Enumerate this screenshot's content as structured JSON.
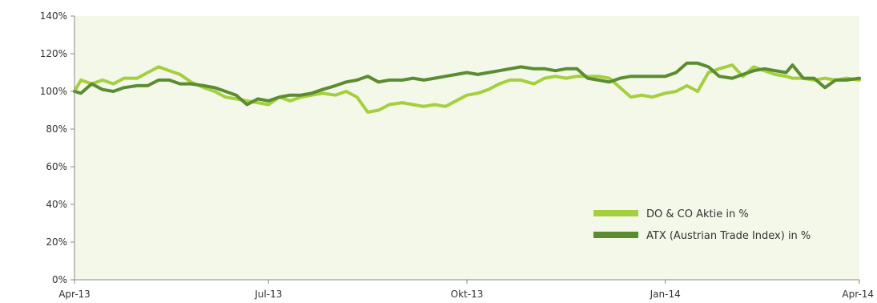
{
  "chart_data": {
    "type": "line",
    "title": "",
    "xlabel": "",
    "ylabel": "",
    "ylim": [
      0,
      140
    ],
    "xlim": [
      "2013-04-02",
      "2014-04-01"
    ],
    "grid": false,
    "legend_position": "bottom-right",
    "y_ticks": [
      "0%",
      "20%",
      "40%",
      "60%",
      "80%",
      "100%",
      "120%",
      "140%"
    ],
    "y_tick_values": [
      0,
      20,
      40,
      60,
      80,
      100,
      120,
      140
    ],
    "x_ticks": [
      "Apr-13",
      "Jul-13",
      "Okt-13",
      "Jan-14",
      "Apr-14"
    ],
    "x_tick_dates": [
      "2013-04-02",
      "2013-07-01",
      "2013-10-01",
      "2014-01-01",
      "2014-04-01"
    ],
    "series": [
      {
        "name": "DO & CO Aktie in %",
        "color": "#a5cf3f",
        "x": [
          "2013-04-02",
          "2013-04-05",
          "2013-04-10",
          "2013-04-15",
          "2013-04-20",
          "2013-04-25",
          "2013-05-01",
          "2013-05-06",
          "2013-05-11",
          "2013-05-16",
          "2013-05-21",
          "2013-05-26",
          "2013-06-01",
          "2013-06-06",
          "2013-06-11",
          "2013-06-16",
          "2013-06-21",
          "2013-06-26",
          "2013-07-01",
          "2013-07-06",
          "2013-07-11",
          "2013-07-16",
          "2013-07-21",
          "2013-07-26",
          "2013-08-01",
          "2013-08-06",
          "2013-08-11",
          "2013-08-16",
          "2013-08-21",
          "2013-08-26",
          "2013-09-01",
          "2013-09-06",
          "2013-09-11",
          "2013-09-16",
          "2013-09-21",
          "2013-09-26",
          "2013-10-01",
          "2013-10-06",
          "2013-10-11",
          "2013-10-16",
          "2013-10-21",
          "2013-10-26",
          "2013-11-01",
          "2013-11-06",
          "2013-11-11",
          "2013-11-16",
          "2013-11-21",
          "2013-11-26",
          "2013-12-01",
          "2013-12-06",
          "2013-12-11",
          "2013-12-16",
          "2013-12-21",
          "2013-12-26",
          "2014-01-01",
          "2014-01-06",
          "2014-01-11",
          "2014-01-16",
          "2014-01-21",
          "2014-01-26",
          "2014-02-01",
          "2014-02-06",
          "2014-02-11",
          "2014-02-16",
          "2014-02-21",
          "2014-02-26",
          "2014-03-01",
          "2014-03-06",
          "2014-03-11",
          "2014-03-16",
          "2014-03-21",
          "2014-03-26",
          "2014-04-01"
        ],
        "values": [
          100,
          106,
          104,
          106,
          104,
          107,
          107,
          110,
          113,
          111,
          109,
          105,
          102,
          100,
          97,
          96,
          95,
          94,
          93,
          97,
          95,
          97,
          98,
          99,
          98,
          100,
          97,
          89,
          90,
          93,
          94,
          93,
          92,
          93,
          92,
          95,
          98,
          99,
          101,
          104,
          106,
          106,
          104,
          107,
          108,
          107,
          108,
          108,
          108,
          107,
          102,
          97,
          98,
          97,
          99,
          100,
          103,
          100,
          110,
          112,
          114,
          108,
          113,
          111,
          109,
          108,
          107,
          107,
          106,
          107,
          106,
          107,
          106
        ]
      },
      {
        "name": "ATX (Austrian Trade Index) in %",
        "color": "#5b8c32",
        "x": [
          "2013-04-02",
          "2013-04-05",
          "2013-04-10",
          "2013-04-15",
          "2013-04-20",
          "2013-04-25",
          "2013-05-01",
          "2013-05-06",
          "2013-05-11",
          "2013-05-16",
          "2013-05-21",
          "2013-05-26",
          "2013-06-01",
          "2013-06-06",
          "2013-06-11",
          "2013-06-16",
          "2013-06-21",
          "2013-06-26",
          "2013-07-01",
          "2013-07-06",
          "2013-07-11",
          "2013-07-16",
          "2013-07-21",
          "2013-07-26",
          "2013-08-01",
          "2013-08-06",
          "2013-08-11",
          "2013-08-16",
          "2013-08-21",
          "2013-08-26",
          "2013-09-01",
          "2013-09-06",
          "2013-09-11",
          "2013-09-16",
          "2013-09-21",
          "2013-09-26",
          "2013-10-01",
          "2013-10-06",
          "2013-10-11",
          "2013-10-16",
          "2013-10-21",
          "2013-10-26",
          "2013-11-01",
          "2013-11-06",
          "2013-11-11",
          "2013-11-16",
          "2013-11-21",
          "2013-11-26",
          "2013-12-01",
          "2013-12-06",
          "2013-12-11",
          "2013-12-16",
          "2013-12-21",
          "2013-12-26",
          "2014-01-01",
          "2014-01-06",
          "2014-01-11",
          "2014-01-16",
          "2014-01-21",
          "2014-01-26",
          "2014-02-01",
          "2014-02-06",
          "2014-02-11",
          "2014-02-16",
          "2014-02-21",
          "2014-02-26",
          "2014-03-01",
          "2014-03-06",
          "2014-03-11",
          "2014-03-16",
          "2014-03-21",
          "2014-03-26",
          "2014-04-01"
        ],
        "values": [
          100,
          99,
          104,
          101,
          100,
          102,
          103,
          103,
          106,
          106,
          104,
          104,
          103,
          102,
          100,
          98,
          93,
          96,
          95,
          97,
          98,
          98,
          99,
          101,
          103,
          105,
          106,
          108,
          105,
          106,
          106,
          107,
          106,
          107,
          108,
          109,
          110,
          109,
          110,
          111,
          112,
          113,
          112,
          112,
          111,
          112,
          112,
          107,
          106,
          105,
          107,
          108,
          108,
          108,
          108,
          110,
          115,
          115,
          113,
          108,
          107,
          109,
          111,
          112,
          111,
          110,
          114,
          107,
          107,
          102,
          106,
          106,
          107
        ]
      }
    ]
  }
}
